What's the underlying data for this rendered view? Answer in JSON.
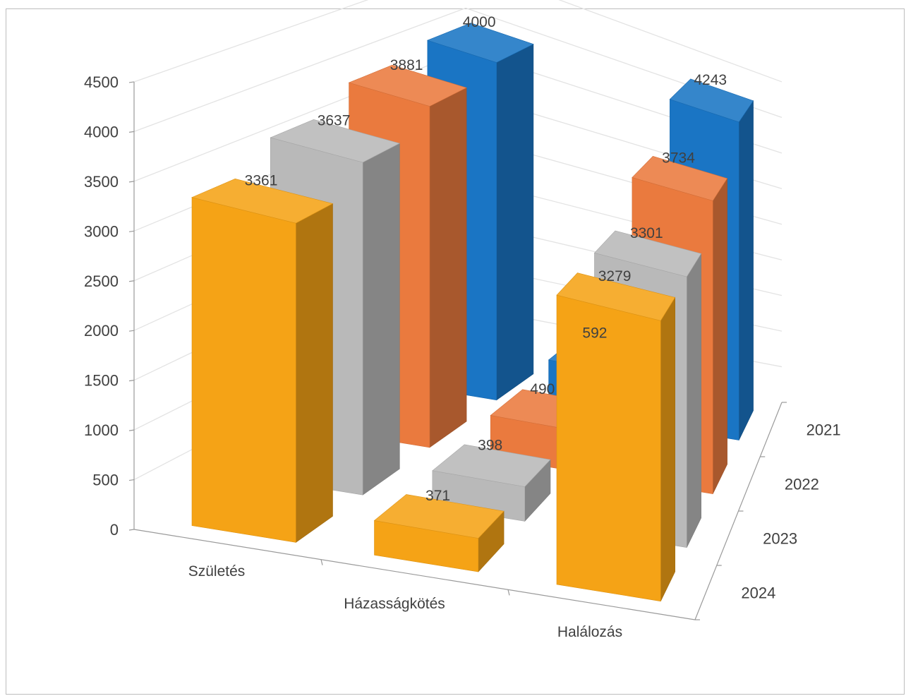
{
  "chart_data": {
    "type": "bar",
    "title": "",
    "categories": [
      "Születés",
      "Házasságkötés",
      "Halálozás"
    ],
    "series": [
      {
        "name": "2021",
        "color": "#1a75c4",
        "values": [
          4000,
          592,
          4243
        ]
      },
      {
        "name": "2022",
        "color": "#ea7a3e",
        "values": [
          3881,
          490,
          3734
        ]
      },
      {
        "name": "2023",
        "color": "#b9b9b9",
        "values": [
          3637,
          398,
          3301
        ]
      },
      {
        "name": "2024",
        "color": "#f5a316",
        "values": [
          3361,
          371,
          3279
        ]
      }
    ],
    "yticks": [
      "0",
      "500",
      "1000",
      "1500",
      "2000",
      "2500",
      "3000",
      "3500",
      "4000",
      "4500"
    ],
    "ylim": [
      0,
      4500
    ],
    "grid": true,
    "data_labels": true,
    "projection": "3d-column"
  }
}
